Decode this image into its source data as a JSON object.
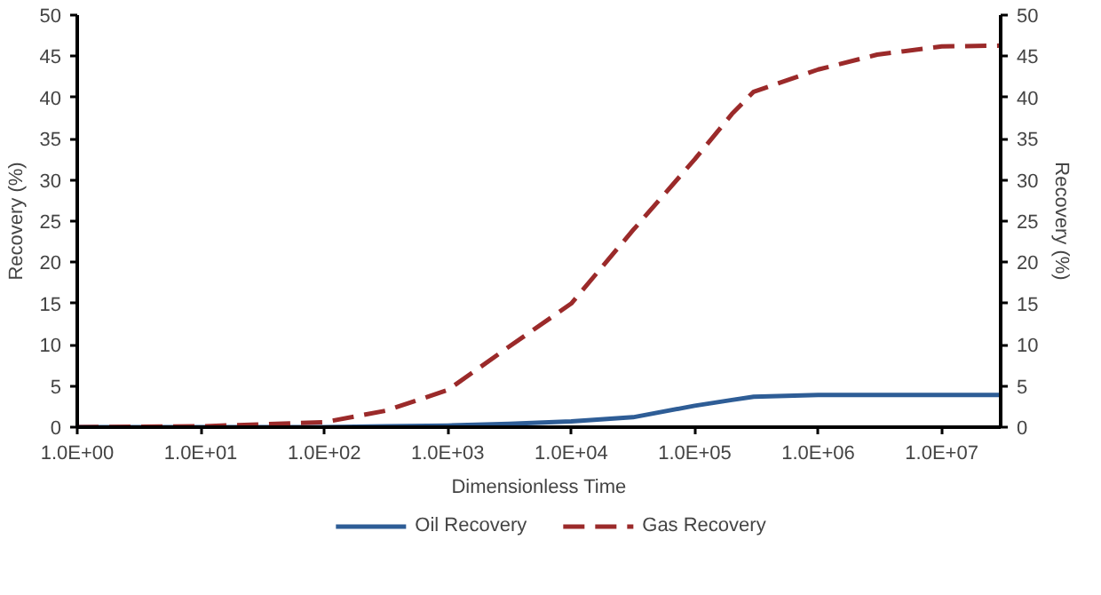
{
  "chart_data": {
    "type": "line",
    "xlabel": "Dimensionless Time",
    "ylabel": "Recovery (%)",
    "y2label": "Recovery (%)",
    "x": [
      1,
      10,
      100,
      316,
      1000,
      3162,
      10000,
      31623,
      100000,
      200000,
      300000,
      1000000,
      3000000,
      10000000,
      30000000
    ],
    "series": [
      {
        "name": "Oil Recovery",
        "color": "#2e5d96",
        "line_style": "solid",
        "values": [
          0,
          0,
          0,
          0.1,
          0.2,
          0.4,
          0.7,
          1.2,
          2.6,
          3.3,
          3.7,
          3.9,
          3.9,
          3.9,
          3.9
        ]
      },
      {
        "name": "Gas Recovery",
        "color": "#9b2a2a",
        "line_style": "dashed",
        "values": [
          0,
          0.1,
          0.6,
          2.0,
          4.5,
          9.8,
          15,
          23.9,
          32.5,
          38,
          40.7,
          43.4,
          45.2,
          46.2,
          46.3
        ]
      }
    ],
    "log": "x",
    "xlim": [
      1,
      30000000
    ],
    "xticks": [
      {
        "value": 1,
        "label": "1.0E+00"
      },
      {
        "value": 10,
        "label": "1.0E+01"
      },
      {
        "value": 100,
        "label": "1.0E+02"
      },
      {
        "value": 1000,
        "label": "1.0E+03"
      },
      {
        "value": 10000,
        "label": "1.0E+04"
      },
      {
        "value": 100000,
        "label": "1.0E+05"
      },
      {
        "value": 1000000,
        "label": "1.0E+06"
      },
      {
        "value": 10000000,
        "label": "1.0E+07"
      }
    ],
    "ylim": [
      0,
      50
    ],
    "yticks": [
      0,
      5,
      10,
      15,
      20,
      25,
      30,
      35,
      40,
      45,
      50
    ],
    "y2lim": [
      0,
      50
    ],
    "y2ticks": [
      0,
      5,
      10,
      15,
      20,
      25,
      30,
      35,
      40,
      45,
      50
    ],
    "grid": false,
    "legend": "bottom"
  }
}
